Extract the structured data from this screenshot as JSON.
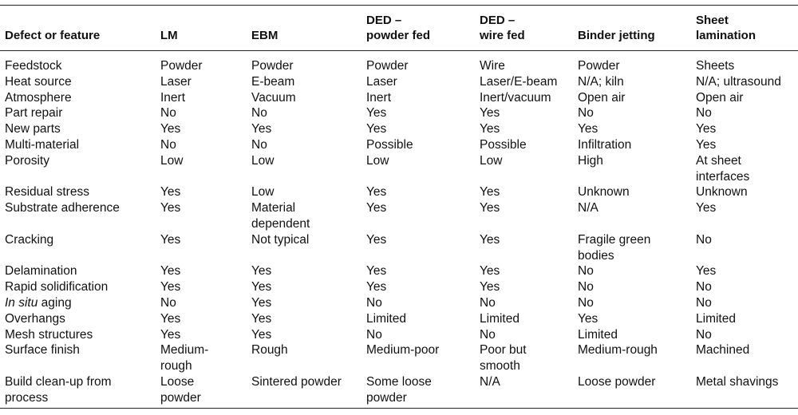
{
  "columns": [
    "Defect or feature",
    "LM",
    "EBM",
    "DED –\npowder fed",
    "DED –\nwire fed",
    "Binder jetting",
    "Sheet\nlamination"
  ],
  "rows": [
    {
      "feature": "Feedstock",
      "cells": [
        "Powder",
        "Powder",
        "Powder",
        "Wire",
        "Powder",
        "Sheets"
      ]
    },
    {
      "feature": "Heat source",
      "cells": [
        "Laser",
        "E-beam",
        "Laser",
        "Laser/E-beam",
        "N/A; kiln",
        "N/A; ultrasound"
      ]
    },
    {
      "feature": "Atmosphere",
      "cells": [
        "Inert",
        "Vacuum",
        "Inert",
        "Inert/vacuum",
        "Open air",
        "Open air"
      ]
    },
    {
      "feature": "Part repair",
      "cells": [
        "No",
        "No",
        "Yes",
        "Yes",
        "No",
        "No"
      ]
    },
    {
      "feature": "New parts",
      "cells": [
        "Yes",
        "Yes",
        "Yes",
        "Yes",
        "Yes",
        "Yes"
      ]
    },
    {
      "feature": "Multi-material",
      "cells": [
        "No",
        "No",
        "Possible",
        "Possible",
        "Infiltration",
        "Yes"
      ]
    },
    {
      "feature": "Porosity",
      "cells": [
        "Low",
        "Low",
        "Low",
        "Low",
        "High",
        "At sheet\ninterfaces"
      ]
    },
    {
      "feature": "Residual stress",
      "cells": [
        "Yes",
        "Low",
        "Yes",
        "Yes",
        "Unknown",
        "Unknown"
      ]
    },
    {
      "feature": "Substrate adherence",
      "cells": [
        "Yes",
        "Material\ndependent",
        "Yes",
        "Yes",
        "N/A",
        "Yes"
      ]
    },
    {
      "feature": "Cracking",
      "cells": [
        "Yes",
        "Not typical",
        "Yes",
        "Yes",
        "Fragile green\nbodies",
        "No"
      ]
    },
    {
      "feature": "Delamination",
      "cells": [
        "Yes",
        "Yes",
        "Yes",
        "Yes",
        "No",
        "Yes"
      ]
    },
    {
      "feature": "Rapid solidification",
      "cells": [
        "Yes",
        "Yes",
        "Yes",
        "Yes",
        "No",
        "No"
      ]
    },
    {
      "feature": "aging",
      "feature_italic_prefix": "In situ",
      "cells": [
        "No",
        "Yes",
        "No",
        "No",
        "No",
        "No"
      ]
    },
    {
      "feature": "Overhangs",
      "cells": [
        "Yes",
        "Yes",
        "Limited",
        "Limited",
        "Yes",
        "Limited"
      ]
    },
    {
      "feature": "Mesh structures",
      "cells": [
        "Yes",
        "Yes",
        "No",
        "No",
        "Limited",
        "No"
      ]
    },
    {
      "feature": "Surface finish",
      "cells": [
        "Medium-\nrough",
        "Rough",
        "Medium-poor",
        "Poor but\nsmooth",
        "Medium-rough",
        "Machined"
      ]
    },
    {
      "feature": "Build clean-up from\nprocess",
      "cells": [
        "Loose\npowder",
        "Sintered powder",
        "Some loose\npowder",
        "N/A",
        "Loose powder",
        "Metal shavings"
      ]
    }
  ]
}
